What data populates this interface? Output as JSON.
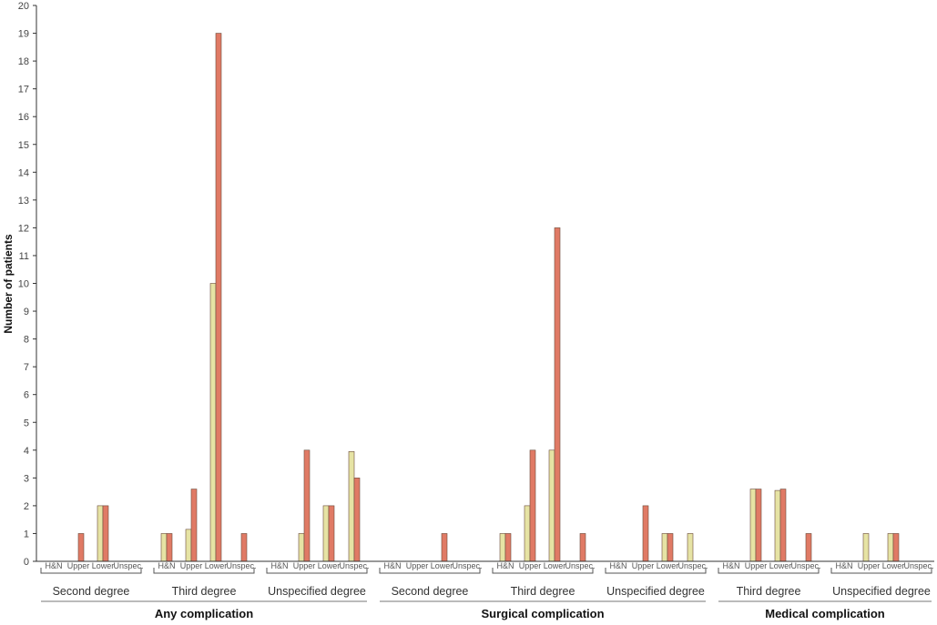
{
  "chart_data": {
    "type": "bar",
    "ylabel": "Number of patients",
    "ylim": [
      0,
      20
    ],
    "yticks": [
      0,
      1,
      2,
      3,
      4,
      5,
      6,
      7,
      8,
      9,
      10,
      11,
      12,
      13,
      14,
      15,
      16,
      17,
      18,
      19,
      20
    ],
    "grid": false,
    "colors": {
      "yellow": "#e6e3a4",
      "red": "#e07a65",
      "edge": "#6b4a3a"
    },
    "categories": [
      "H&N",
      "Upper",
      "Lower",
      "Unspec."
    ],
    "groups": [
      {
        "label": "Any complication",
        "subgroups": [
          {
            "label": "Second degree",
            "yellow": [
              0,
              0,
              2,
              0
            ],
            "red": [
              0,
              1,
              2,
              0
            ]
          },
          {
            "label": "Third degree",
            "yellow": [
              1,
              1.15,
              10,
              0
            ],
            "red": [
              1,
              2.6,
              19,
              1
            ]
          },
          {
            "label": "Unspecified degree",
            "yellow": [
              0,
              1,
              2,
              3.95
            ],
            "red": [
              0,
              4,
              2,
              3
            ]
          }
        ]
      },
      {
        "label": "Surgical complication",
        "subgroups": [
          {
            "label": "Second degree",
            "yellow": [
              0,
              0,
              0,
              0
            ],
            "red": [
              0,
              0,
              1,
              0
            ]
          },
          {
            "label": "Third degree",
            "yellow": [
              1,
              2,
              4,
              0
            ],
            "red": [
              1,
              4,
              12,
              1
            ]
          },
          {
            "label": "Unspecified degree",
            "yellow": [
              0,
              0,
              1,
              1
            ],
            "red": [
              0,
              2,
              1,
              0
            ]
          }
        ]
      },
      {
        "label": "Medical complication",
        "subgroups": [
          {
            "label": "Third degree",
            "yellow": [
              0,
              2.6,
              2.55,
              0
            ],
            "red": [
              0,
              2.6,
              2.6,
              1
            ]
          },
          {
            "label": "Unspecified degree",
            "yellow": [
              0,
              1,
              1,
              0
            ],
            "red": [
              0,
              0,
              1,
              0
            ]
          }
        ]
      }
    ]
  }
}
